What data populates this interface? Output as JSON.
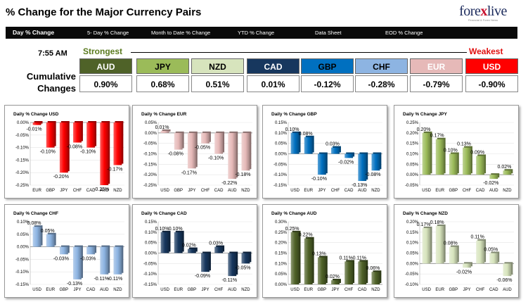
{
  "header": {
    "title": "% Change for the Major Currency Pairs",
    "logo": {
      "brand_pre": "fore",
      "brand_x": "x",
      "brand_post": "live",
      "tagline": "Financial & Forex News"
    }
  },
  "nav": {
    "tabs": [
      {
        "label": "Day % Change",
        "active": true
      },
      {
        "label": "5- Day % Change",
        "active": false
      },
      {
        "label": "Month to Date % Change",
        "active": false
      },
      {
        "label": "YTD % Change",
        "active": false
      },
      {
        "label": "Data Sheet",
        "active": false
      },
      {
        "label": "EOD % Change",
        "active": false
      }
    ]
  },
  "summary": {
    "time": "7:55 AM",
    "cumulative_label": "Cumulative Changes",
    "strongest_label": "Strongest",
    "weakest_label": "Weakest",
    "currencies": [
      {
        "code": "AUD",
        "value": "0.90%",
        "bg": "#4f6228",
        "fg": "#ffffff"
      },
      {
        "code": "JPY",
        "value": "0.68%",
        "bg": "#9bbb59",
        "fg": "#000000"
      },
      {
        "code": "NZD",
        "value": "0.51%",
        "bg": "#d7e4bd",
        "fg": "#000000"
      },
      {
        "code": "CAD",
        "value": "0.01%",
        "bg": "#17375e",
        "fg": "#ffffff"
      },
      {
        "code": "GBP",
        "value": "-0.12%",
        "bg": "#0070c0",
        "fg": "#000000"
      },
      {
        "code": "CHF",
        "value": "-0.28%",
        "bg": "#8db4e2",
        "fg": "#000000"
      },
      {
        "code": "EUR",
        "value": "-0.79%",
        "bg": "#e6b9b8",
        "fg": "#ffffff"
      },
      {
        "code": "USD",
        "value": "-0.90%",
        "bg": "#ff0000",
        "fg": "#ffffff"
      }
    ]
  },
  "chart_data": [
    {
      "type": "bar",
      "title": "Daily % Change USD",
      "color": "#ff0000",
      "categories": [
        "EUR",
        "GBP",
        "JPY",
        "CHF",
        "CAD",
        "AUD",
        "NZD"
      ],
      "values": [
        -0.01,
        -0.1,
        -0.2,
        -0.08,
        -0.1,
        -0.25,
        -0.17
      ],
      "labels": [
        "-0.01%",
        "-0.10%",
        "-0.20%",
        "-0.08%",
        "-0.10%",
        "-0.25%",
        "-0.17%"
      ],
      "ylim": [
        -0.25,
        0.0
      ],
      "yticks": [
        0.0,
        -0.05,
        -0.1,
        -0.15,
        -0.2,
        -0.25
      ],
      "ytick_labels": [
        "0.00%",
        "-0.05%",
        "-0.10%",
        "-0.15%",
        "-0.20%",
        "-0.25%"
      ]
    },
    {
      "type": "bar",
      "title": "Daily % Change EUR",
      "color": "#e6b9b8",
      "categories": [
        "USD",
        "GBP",
        "JPY",
        "CHF",
        "CAD",
        "AUD",
        "NZD"
      ],
      "values": [
        0.01,
        -0.08,
        -0.17,
        -0.05,
        -0.1,
        -0.22,
        -0.18
      ],
      "labels": [
        "0.01%",
        "-0.08%",
        "-0.17%",
        "-0.05%",
        "-0.10%",
        "-0.22%",
        "-0.18%"
      ],
      "ylim": [
        -0.25,
        0.05
      ],
      "yticks": [
        0.05,
        0.0,
        -0.05,
        -0.1,
        -0.15,
        -0.2,
        -0.25
      ],
      "ytick_labels": [
        "0.05%",
        "0.00%",
        "-0.05%",
        "-0.10%",
        "-0.15%",
        "-0.20%",
        "-0.25%"
      ]
    },
    {
      "type": "bar",
      "title": "Daily % Change GBP",
      "color": "#0070c0",
      "categories": [
        "USD",
        "EUR",
        "JPY",
        "CHF",
        "CAD",
        "AUD",
        "NZD"
      ],
      "values": [
        0.1,
        0.08,
        -0.1,
        0.03,
        -0.02,
        -0.13,
        -0.08
      ],
      "labels": [
        "0.10%",
        "0.08%",
        "-0.10%",
        "0.03%",
        "-0.02%",
        "-0.13%",
        "-0.08%"
      ],
      "ylim": [
        -0.15,
        0.15
      ],
      "yticks": [
        0.15,
        0.1,
        0.05,
        0.0,
        -0.05,
        -0.1,
        -0.15
      ],
      "ytick_labels": [
        "0.15%",
        "0.10%",
        "0.05%",
        "0.00%",
        "-0.05%",
        "-0.10%",
        "-0.15%"
      ]
    },
    {
      "type": "bar",
      "title": "Daily % Change JPY",
      "color": "#9bbb59",
      "categories": [
        "USD",
        "EUR",
        "GBP",
        "CHF",
        "CAD",
        "AUD",
        "NZD"
      ],
      "values": [
        0.2,
        0.17,
        0.1,
        0.13,
        0.09,
        -0.02,
        0.02
      ],
      "labels": [
        "0.20%",
        "0.17%",
        "0.10%",
        "0.13%",
        "0.09%",
        "-0.02%",
        "0.02%"
      ],
      "ylim": [
        -0.05,
        0.25
      ],
      "yticks": [
        0.25,
        0.2,
        0.15,
        0.1,
        0.05,
        0.0,
        -0.05
      ],
      "ytick_labels": [
        "0.25%",
        "0.20%",
        "0.15%",
        "0.10%",
        "0.05%",
        "0.00%",
        "-0.05%"
      ]
    },
    {
      "type": "bar",
      "title": "Daily % Change CHF",
      "color": "#8db4e2",
      "categories": [
        "USD",
        "EUR",
        "GBP",
        "JPY",
        "CAD",
        "AUD",
        "NZD"
      ],
      "values": [
        0.08,
        0.05,
        -0.03,
        -0.13,
        -0.03,
        -0.11,
        -0.11
      ],
      "labels": [
        "0.08%",
        "0.05%",
        "-0.03%",
        "-0.13%",
        "-0.03%",
        "-0.11%",
        "-0.11%"
      ],
      "ylim": [
        -0.15,
        0.1
      ],
      "yticks": [
        0.1,
        0.05,
        0.0,
        -0.05,
        -0.1,
        -0.15
      ],
      "ytick_labels": [
        "0.10%",
        "0.05%",
        "0.00%",
        "-0.05%",
        "-0.10%",
        "-0.15%"
      ]
    },
    {
      "type": "bar",
      "title": "Daily % Change CAD",
      "color": "#17375e",
      "categories": [
        "USD",
        "EUR",
        "GBP",
        "JPY",
        "CHF",
        "AUD",
        "NZD"
      ],
      "values": [
        0.1,
        0.1,
        0.02,
        -0.09,
        0.03,
        -0.11,
        -0.05
      ],
      "labels": [
        "0.10%",
        "0.10%",
        "0.02%",
        "-0.09%",
        "0.03%",
        "-0.11%",
        "-0.05%"
      ],
      "ylim": [
        -0.15,
        0.15
      ],
      "yticks": [
        0.15,
        0.1,
        0.05,
        0.0,
        -0.05,
        -0.1,
        -0.15
      ],
      "ytick_labels": [
        "0.15%",
        "0.10%",
        "0.05%",
        "0.00%",
        "-0.05%",
        "-0.10%",
        "-0.15%"
      ]
    },
    {
      "type": "bar",
      "title": "Daily % Change AUD",
      "color": "#4f6228",
      "categories": [
        "USD",
        "EUR",
        "GBP",
        "JPY",
        "CHF",
        "CAD",
        "NZD"
      ],
      "values": [
        0.25,
        0.22,
        0.13,
        0.02,
        0.11,
        0.11,
        0.06
      ],
      "labels": [
        "0.25%",
        "0.22%",
        "0.13%",
        "0.02%",
        "0.11%",
        "0.11%",
        "0.06%"
      ],
      "ylim": [
        0.0,
        0.3
      ],
      "yticks": [
        0.3,
        0.25,
        0.2,
        0.15,
        0.1,
        0.05,
        0.0
      ],
      "ytick_labels": [
        "0.30%",
        "0.25%",
        "0.20%",
        "0.15%",
        "0.10%",
        "0.05%",
        "0.00%"
      ]
    },
    {
      "type": "bar",
      "title": "Daily % Change NZD",
      "color": "#d7e4bd",
      "categories": [
        "USD",
        "EUR",
        "GBP",
        "JPY",
        "CHF",
        "CAD",
        "AUD"
      ],
      "values": [
        0.17,
        0.18,
        0.08,
        -0.02,
        0.11,
        0.05,
        -0.06
      ],
      "labels": [
        "0.17%",
        "0.18%",
        "0.08%",
        "-0.02%",
        "0.11%",
        "0.05%",
        "-0.06%"
      ],
      "ylim": [
        -0.1,
        0.2
      ],
      "yticks": [
        0.2,
        0.15,
        0.1,
        0.05,
        0.0,
        -0.05,
        -0.1
      ],
      "ytick_labels": [
        "0.20%",
        "0.15%",
        "0.10%",
        "0.05%",
        "0.00%",
        "-0.05%",
        "-0.10%"
      ]
    }
  ]
}
